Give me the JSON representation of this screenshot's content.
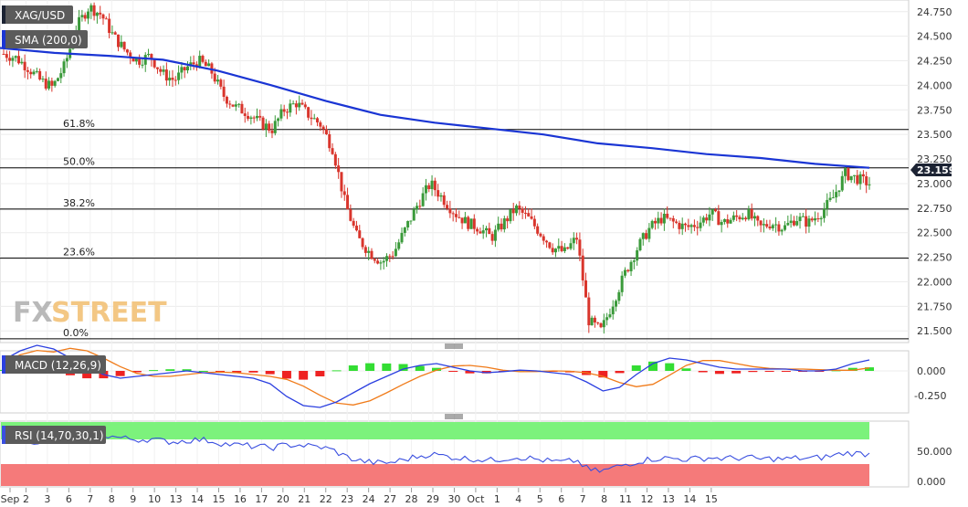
{
  "symbol": "XAG/USD",
  "sma_label": "SMA (200,0)",
  "macd_label": "MACD (12,26,9)",
  "rsi_label": "RSI (14,70,30,1)",
  "price_tag": "23.159",
  "watermark": {
    "part1": "FX",
    "part2": "STREET"
  },
  "colors": {
    "up": "#3a9a3a",
    "down": "#d9352c",
    "sma": "#1a35d4",
    "macd": "#2b3fe0",
    "signal": "#f07b1a",
    "rsi": "#3a4fe0",
    "overbought": "#7cf27c",
    "oversold": "#f57a7a"
  },
  "chart_data": [
    {
      "type": "candlestick",
      "title": "XAG/USD",
      "price_axis": {
        "min": 21.4,
        "max": 24.85,
        "ticks": [
          "24.750",
          "24.500",
          "24.250",
          "24.000",
          "23.750",
          "23.500",
          "23.250",
          "23.000",
          "22.750",
          "22.500",
          "22.250",
          "22.000",
          "21.750",
          "21.500"
        ]
      },
      "x_tick_labels": [
        "Sep",
        "2",
        "3",
        "6",
        "7",
        "8",
        "9",
        "10",
        "13",
        "14",
        "15",
        "16",
        "17",
        "20",
        "21",
        "22",
        "23",
        "24",
        "27",
        "28",
        "29",
        "30",
        "Oct",
        "1",
        "4",
        "5",
        "6",
        "7",
        "8",
        "11",
        "12",
        "13",
        "14",
        "15"
      ],
      "fibonacci": [
        {
          "label": "61.8%",
          "price": 23.55
        },
        {
          "label": "50.0%",
          "price": 23.16
        },
        {
          "label": "38.2%",
          "price": 22.74
        },
        {
          "label": "23.6%",
          "price": 22.24
        },
        {
          "label": "0.0%",
          "price": 21.42
        }
      ],
      "series": [
        {
          "name": "XAG/USD",
          "close_path": [
            24.32,
            24.28,
            24.18,
            24.05,
            23.98,
            24.2,
            24.6,
            24.8,
            24.72,
            24.5,
            24.35,
            24.25,
            24.3,
            24.12,
            24.05,
            24.18,
            24.25,
            24.15,
            23.9,
            23.78,
            23.72,
            23.62,
            23.55,
            23.75,
            23.82,
            23.7,
            23.6,
            23.35,
            22.8,
            22.45,
            22.3,
            22.2,
            22.3,
            22.55,
            22.8,
            23.0,
            22.85,
            22.7,
            22.6,
            22.55,
            22.45,
            22.6,
            22.75,
            22.65,
            22.5,
            22.35,
            22.3,
            22.45,
            21.6,
            21.5,
            21.8,
            22.1,
            22.35,
            22.55,
            22.65,
            22.6,
            22.55,
            22.6,
            22.7,
            22.6,
            22.65,
            22.7,
            22.55,
            22.6,
            22.55,
            22.65,
            22.6,
            22.7,
            22.85,
            23.1,
            23.05,
            23.0
          ]
        },
        {
          "name": "SMA (200,0)",
          "points": [
            24.38,
            24.33,
            24.3,
            24.26,
            24.15,
            24.0,
            23.84,
            23.7,
            23.62,
            23.56,
            23.5,
            23.41,
            23.36,
            23.3,
            23.26,
            23.2,
            23.16
          ]
        }
      ]
    },
    {
      "type": "bar",
      "title": "MACD (12,26,9)",
      "y_ticks": [
        "0.000",
        "-0.250"
      ],
      "note": "histogram green above zero, red below"
    },
    {
      "type": "line",
      "title": "RSI (14,70,30,1)",
      "y_ticks": [
        "50.000",
        "0.000"
      ],
      "overbought": 70,
      "oversold": 30
    }
  ]
}
